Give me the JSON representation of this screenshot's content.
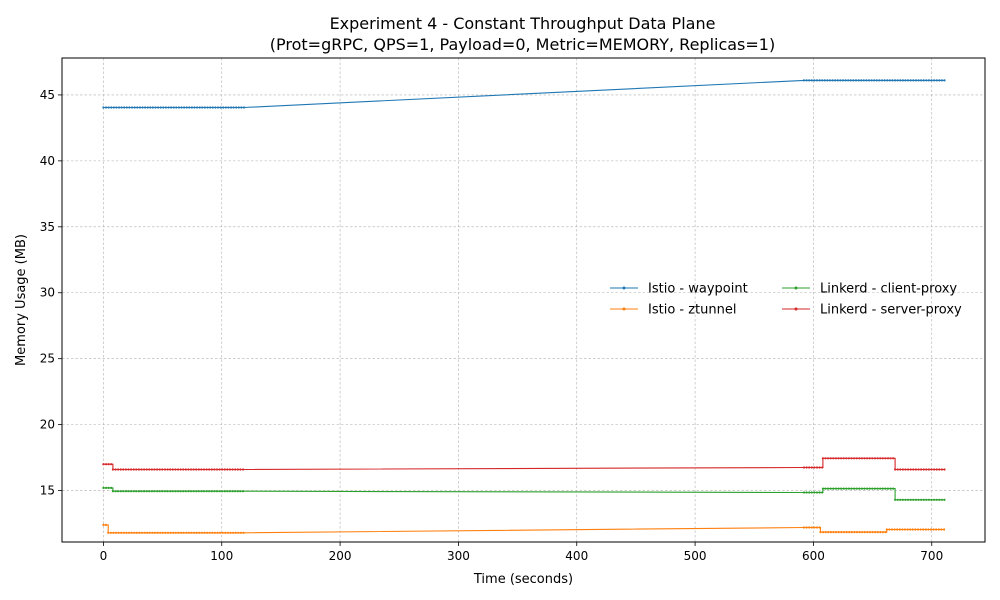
{
  "chart_data": {
    "type": "line",
    "title": "Experiment 4 - Constant Throughput Data Plane",
    "subtitle": "(Prot=gRPC, QPS=1, Payload=0, Metric=MEMORY, Replicas=1)",
    "xlabel": "Time (seconds)",
    "ylabel": "Memory Usage (MB)",
    "xlim": [
      -35,
      745
    ],
    "ylim": [
      11.1,
      47.8
    ],
    "xticks": [
      0,
      100,
      200,
      300,
      400,
      500,
      600,
      700
    ],
    "yticks": [
      15,
      20,
      25,
      30,
      35,
      40,
      45
    ],
    "grid": true,
    "legend": {
      "position": "center-right",
      "columns": 2
    },
    "series": [
      {
        "name": "Istio - waypoint",
        "color": "#1f77b4",
        "points": [
          [
            0,
            44.05
          ],
          [
            119,
            44.05
          ],
          [
            592,
            46.1
          ],
          [
            711,
            46.1
          ]
        ]
      },
      {
        "name": "Istio - ztunnel",
        "color": "#ff7f0e",
        "points": [
          [
            0,
            12.4
          ],
          [
            4,
            12.4
          ],
          [
            4,
            11.8
          ],
          [
            119,
            11.8
          ],
          [
            592,
            12.2
          ],
          [
            606,
            12.2
          ],
          [
            606,
            11.85
          ],
          [
            662,
            11.85
          ],
          [
            662,
            12.05
          ],
          [
            711,
            12.05
          ]
        ]
      },
      {
        "name": "Linkerd - client-proxy",
        "color": "#2ca02c",
        "points": [
          [
            0,
            15.2
          ],
          [
            8,
            15.2
          ],
          [
            8,
            14.95
          ],
          [
            119,
            14.95
          ],
          [
            592,
            14.85
          ],
          [
            608,
            14.85
          ],
          [
            608,
            15.15
          ],
          [
            669,
            15.15
          ],
          [
            669,
            14.3
          ],
          [
            711,
            14.3
          ]
        ]
      },
      {
        "name": "Linkerd - server-proxy",
        "color": "#d62728",
        "points": [
          [
            0,
            17.0
          ],
          [
            8,
            17.0
          ],
          [
            8,
            16.6
          ],
          [
            119,
            16.6
          ],
          [
            592,
            16.75
          ],
          [
            608,
            16.75
          ],
          [
            608,
            17.45
          ],
          [
            669,
            17.45
          ],
          [
            669,
            16.6
          ],
          [
            711,
            16.6
          ]
        ]
      }
    ]
  }
}
